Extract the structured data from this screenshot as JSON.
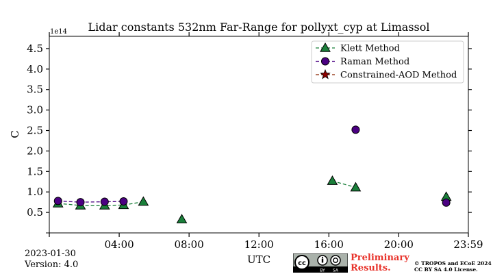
{
  "chart_data": {
    "type": "scatter",
    "title": "Lidar constants 532nm Far-Range for pollyxt_cyp at Limassol",
    "xlabel": "UTC",
    "ylabel": "C",
    "y_offset_label": "1e14",
    "xlim": [
      0,
      1439
    ],
    "ylim": [
      0,
      4.8
    ],
    "x_unit": "minutes since 00:00 UTC",
    "y_unit": "x1e14",
    "xticks": [
      {
        "value": 240,
        "label": "04:00"
      },
      {
        "value": 480,
        "label": "08:00"
      },
      {
        "value": 720,
        "label": "12:00"
      },
      {
        "value": 960,
        "label": "16:00"
      },
      {
        "value": 1200,
        "label": "20:00"
      },
      {
        "value": 1439,
        "label": "23:59"
      }
    ],
    "yticks": [
      {
        "value": 0.5,
        "label": "0.5"
      },
      {
        "value": 1.0,
        "label": "1.0"
      },
      {
        "value": 1.5,
        "label": "1.5"
      },
      {
        "value": 2.0,
        "label": "2.0"
      },
      {
        "value": 2.5,
        "label": "2.5"
      },
      {
        "value": 3.0,
        "label": "3.0"
      },
      {
        "value": 3.5,
        "label": "3.5"
      },
      {
        "value": 4.0,
        "label": "4.0"
      },
      {
        "value": 4.5,
        "label": "4.5"
      }
    ],
    "legend_position": "top-right",
    "series": [
      {
        "name": "Klett Method",
        "marker": "triangle",
        "color": "#1a7f3a",
        "line_color": "#1a7f3a",
        "segments": [
          [
            {
              "x": 30,
              "y": 0.72
            },
            {
              "x": 107,
              "y": 0.67
            },
            {
              "x": 190,
              "y": 0.67
            },
            {
              "x": 255,
              "y": 0.68
            },
            {
              "x": 323,
              "y": 0.76
            }
          ],
          [
            {
              "x": 455,
              "y": 0.33
            }
          ],
          [
            {
              "x": 972,
              "y": 1.27
            },
            {
              "x": 1052,
              "y": 1.11
            }
          ],
          [
            {
              "x": 1363,
              "y": 0.88
            }
          ]
        ]
      },
      {
        "name": "Raman Method",
        "marker": "circle",
        "color": "#4b0082",
        "line_color": "#4b0082",
        "segments": [
          [
            {
              "x": 30,
              "y": 0.78
            },
            {
              "x": 107,
              "y": 0.75
            },
            {
              "x": 190,
              "y": 0.76
            },
            {
              "x": 255,
              "y": 0.77
            }
          ],
          [
            {
              "x": 1052,
              "y": 2.52
            }
          ],
          [
            {
              "x": 1363,
              "y": 0.74
            }
          ]
        ]
      },
      {
        "name": "Constrained-AOD Method",
        "marker": "star",
        "color": "#8b0000",
        "line_color": "#8b2500",
        "segments": []
      }
    ]
  },
  "footer": {
    "date": "2023-01-30",
    "version": "Version: 4.0",
    "preliminary_line1": "Preliminary",
    "preliminary_line2": "Results.",
    "copyright_line1": "© TROPOS and ECoE 2024",
    "copyright_line2": "CC BY SA 4.0 License."
  },
  "license_badge": {
    "cc": "cc",
    "by": "BY",
    "sa": "SA"
  }
}
